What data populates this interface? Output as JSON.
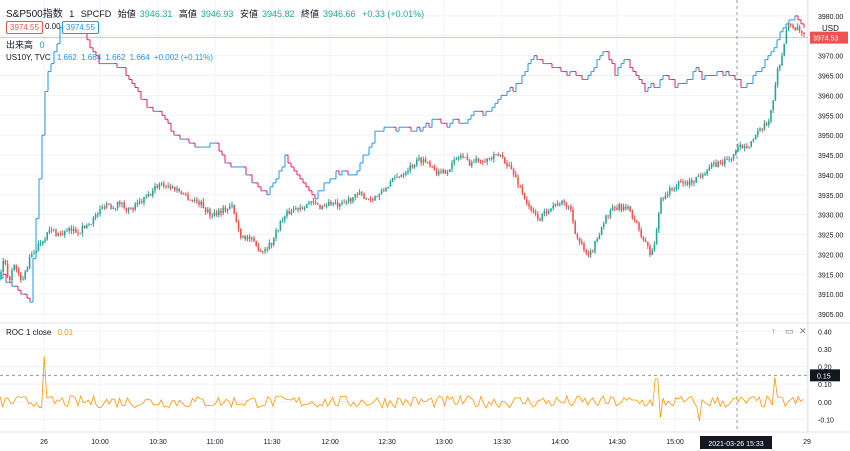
{
  "chart_data": [
    {
      "type": "candlestick",
      "title": "S&P500指数",
      "interval": "1",
      "exchange": "SPCFD",
      "ohlc": {
        "open_label": "始値",
        "open": "3946.31",
        "high_label": "高値",
        "high": "3946.93",
        "low_label": "安値",
        "low": "3945.82",
        "close_label": "終値",
        "close": "3946.66",
        "change": "+0.33 (+0.01%)"
      },
      "badges": [
        "3974.55",
        "0.00",
        "3974.55"
      ],
      "volume_label": "出来高",
      "volume_value": "0",
      "currency": "USD",
      "last_price": "3974.53",
      "colors": {
        "up": "#26a69a",
        "down": "#ef5350",
        "overlay": "#2196f3",
        "overlay_down": "#e91e63",
        "roc": "#ff9800",
        "text": "#131722"
      },
      "ylim": [
        3903,
        3984
      ],
      "y_ticks": [
        "3980.00",
        "3975.00",
        "3970.00",
        "3965.00",
        "3960.00",
        "3955.00",
        "3950.00",
        "3945.00",
        "3940.00",
        "3935.00",
        "3930.00",
        "3925.00",
        "3920.00",
        "3915.00",
        "3910.00",
        "3905.00"
      ],
      "path": [
        [
          0,
          3914
        ],
        [
          4,
          3919
        ],
        [
          8,
          3913
        ],
        [
          14,
          3917
        ],
        [
          22,
          3913
        ],
        [
          30,
          3919
        ],
        [
          40,
          3923
        ],
        [
          50,
          3926
        ],
        [
          60,
          3925
        ],
        [
          70,
          3926
        ],
        [
          80,
          3926
        ],
        [
          90,
          3928
        ],
        [
          100,
          3931
        ],
        [
          106,
          3933
        ],
        [
          112,
          3932
        ],
        [
          120,
          3933
        ],
        [
          130,
          3931
        ],
        [
          140,
          3933
        ],
        [
          150,
          3935
        ],
        [
          156,
          3937
        ],
        [
          160,
          3938
        ],
        [
          170,
          3937
        ],
        [
          180,
          3936
        ],
        [
          190,
          3934
        ],
        [
          200,
          3933
        ],
        [
          210,
          3930
        ],
        [
          220,
          3931
        ],
        [
          232,
          3932
        ],
        [
          240,
          3925
        ],
        [
          250,
          3924
        ],
        [
          256,
          3922
        ],
        [
          262,
          3921
        ],
        [
          272,
          3923
        ],
        [
          280,
          3928
        ],
        [
          290,
          3931
        ],
        [
          300,
          3932
        ],
        [
          310,
          3933
        ],
        [
          320,
          3932
        ],
        [
          330,
          3933
        ],
        [
          340,
          3932
        ],
        [
          350,
          3934
        ],
        [
          360,
          3935
        ],
        [
          370,
          3934
        ],
        [
          380,
          3935
        ],
        [
          390,
          3938
        ],
        [
          400,
          3940
        ],
        [
          410,
          3942
        ],
        [
          420,
          3944
        ],
        [
          430,
          3943
        ],
        [
          440,
          3940
        ],
        [
          450,
          3942
        ],
        [
          460,
          3945
        ],
        [
          470,
          3943
        ],
        [
          480,
          3944
        ],
        [
          490,
          3944
        ],
        [
          500,
          3945
        ],
        [
          510,
          3942
        ],
        [
          520,
          3937
        ],
        [
          530,
          3931
        ],
        [
          540,
          3929
        ],
        [
          550,
          3932
        ],
        [
          560,
          3933
        ],
        [
          570,
          3932
        ],
        [
          576,
          3925
        ],
        [
          582,
          3922
        ],
        [
          588,
          3919
        ],
        [
          594,
          3922
        ],
        [
          600,
          3926
        ],
        [
          605,
          3929
        ],
        [
          612,
          3931
        ],
        [
          620,
          3932
        ],
        [
          630,
          3931
        ],
        [
          636,
          3928
        ],
        [
          640,
          3925
        ],
        [
          646,
          3923
        ],
        [
          650,
          3920
        ],
        [
          654,
          3922
        ],
        [
          658,
          3928
        ],
        [
          660,
          3934
        ],
        [
          670,
          3936
        ],
        [
          680,
          3938
        ],
        [
          690,
          3938
        ],
        [
          700,
          3940
        ],
        [
          710,
          3942
        ],
        [
          720,
          3943
        ],
        [
          730,
          3944
        ],
        [
          740,
          3947
        ],
        [
          750,
          3948
        ],
        [
          760,
          3951
        ],
        [
          768,
          3953
        ],
        [
          774,
          3960
        ],
        [
          778,
          3967
        ],
        [
          782,
          3970
        ],
        [
          786,
          3976
        ],
        [
          790,
          3978
        ],
        [
          795,
          3977
        ],
        [
          800,
          3976
        ],
        [
          804,
          3975
        ]
      ],
      "overlay_path": [
        [
          0,
          3915
        ],
        [
          30,
          3908
        ],
        [
          46,
          3964
        ],
        [
          60,
          3976
        ],
        [
          80,
          3977
        ],
        [
          100,
          3968
        ],
        [
          110,
          3968
        ],
        [
          125,
          3966
        ],
        [
          135,
          3962
        ],
        [
          145,
          3958
        ],
        [
          155,
          3956
        ],
        [
          165,
          3954
        ],
        [
          175,
          3950
        ],
        [
          185,
          3949
        ],
        [
          195,
          3947
        ],
        [
          205,
          3947
        ],
        [
          215,
          3948
        ],
        [
          225,
          3943
        ],
        [
          235,
          3942
        ],
        [
          245,
          3941
        ],
        [
          255,
          3938
        ],
        [
          265,
          3935
        ],
        [
          275,
          3939
        ],
        [
          285,
          3944
        ],
        [
          295,
          3940
        ],
        [
          305,
          3938
        ],
        [
          315,
          3935
        ],
        [
          325,
          3938
        ],
        [
          335,
          3940
        ],
        [
          345,
          3941
        ],
        [
          355,
          3940
        ],
        [
          365,
          3945
        ],
        [
          375,
          3950
        ],
        [
          385,
          3952
        ],
        [
          395,
          3952
        ],
        [
          405,
          3952
        ],
        [
          415,
          3951
        ],
        [
          425,
          3952
        ],
        [
          435,
          3954
        ],
        [
          445,
          3952
        ],
        [
          455,
          3954
        ],
        [
          465,
          3953
        ],
        [
          475,
          3956
        ],
        [
          485,
          3955
        ],
        [
          495,
          3958
        ],
        [
          505,
          3960
        ],
        [
          515,
          3962
        ],
        [
          525,
          3966
        ],
        [
          535,
          3970
        ],
        [
          545,
          3968
        ],
        [
          555,
          3967
        ],
        [
          565,
          3966
        ],
        [
          575,
          3966
        ],
        [
          585,
          3964
        ],
        [
          595,
          3968
        ],
        [
          605,
          3971
        ],
        [
          615,
          3966
        ],
        [
          625,
          3969
        ],
        [
          635,
          3966
        ],
        [
          645,
          3962
        ],
        [
          655,
          3962
        ],
        [
          665,
          3966
        ],
        [
          675,
          3962
        ],
        [
          685,
          3963
        ],
        [
          695,
          3967
        ],
        [
          705,
          3964
        ],
        [
          715,
          3966
        ],
        [
          725,
          3966
        ],
        [
          735,
          3964
        ],
        [
          745,
          3962
        ],
        [
          755,
          3966
        ],
        [
          765,
          3968
        ],
        [
          775,
          3972
        ],
        [
          785,
          3978
        ],
        [
          795,
          3980
        ],
        [
          805,
          3977
        ]
      ],
      "x_ticks": [
        [
          "26",
          44
        ],
        [
          "10:00",
          100
        ],
        [
          "10:30",
          158
        ],
        [
          "11:00",
          215
        ],
        [
          "11:30",
          272
        ],
        [
          "12:00",
          330
        ],
        [
          "12:30",
          387
        ],
        [
          "13:00",
          444
        ],
        [
          "13:30",
          502
        ],
        [
          "14:00",
          560
        ],
        [
          "14:30",
          617
        ],
        [
          "15:00",
          675
        ],
        [
          "29",
          807
        ]
      ],
      "crosshair_label": "2021-03-26  15:33"
    },
    {
      "type": "line",
      "title": "ROC 1 close",
      "last_value": "0.01",
      "hover_value": "0.15",
      "ylim": [
        -0.16,
        0.43
      ],
      "y_ticks": [
        "0.40",
        "0.30",
        "0.20",
        "0.10",
        "0.00",
        "-0.10"
      ]
    }
  ],
  "overlay_legend": {
    "label": "US10Y, TVC",
    "values": [
      "1.662",
      "1.664",
      "1.662",
      "1.664",
      "+0.002 (+0.11%)"
    ]
  }
}
